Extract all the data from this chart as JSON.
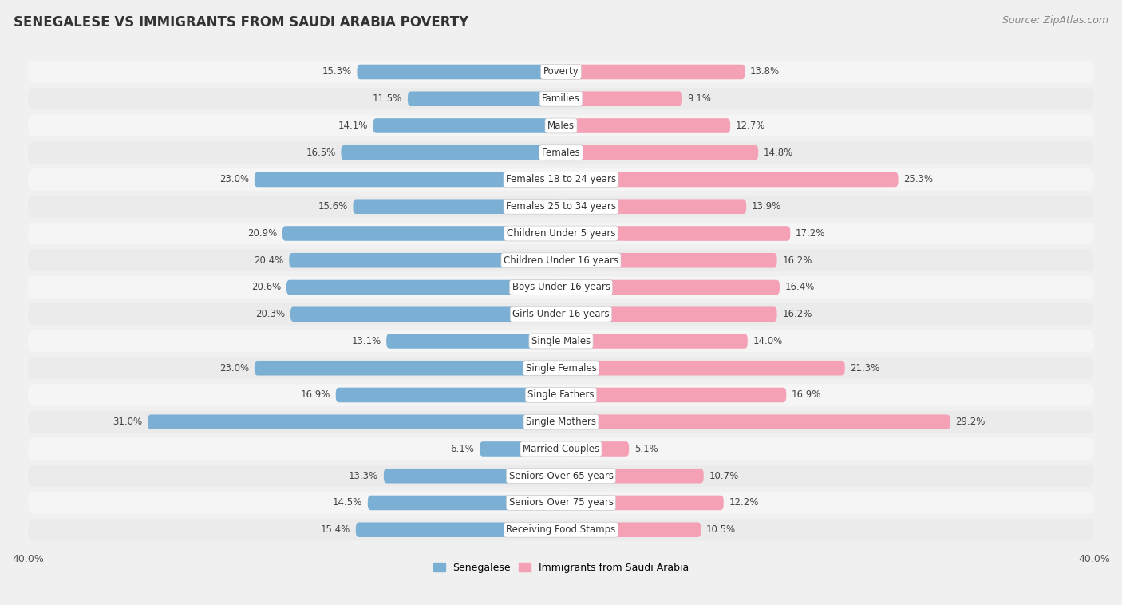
{
  "title": "SENEGALESE VS IMMIGRANTS FROM SAUDI ARABIA POVERTY",
  "source": "Source: ZipAtlas.com",
  "categories": [
    "Poverty",
    "Families",
    "Males",
    "Females",
    "Females 18 to 24 years",
    "Females 25 to 34 years",
    "Children Under 5 years",
    "Children Under 16 years",
    "Boys Under 16 years",
    "Girls Under 16 years",
    "Single Males",
    "Single Females",
    "Single Fathers",
    "Single Mothers",
    "Married Couples",
    "Seniors Over 65 years",
    "Seniors Over 75 years",
    "Receiving Food Stamps"
  ],
  "senegalese": [
    15.3,
    11.5,
    14.1,
    16.5,
    23.0,
    15.6,
    20.9,
    20.4,
    20.6,
    20.3,
    13.1,
    23.0,
    16.9,
    31.0,
    6.1,
    13.3,
    14.5,
    15.4
  ],
  "immigrants": [
    13.8,
    9.1,
    12.7,
    14.8,
    25.3,
    13.9,
    17.2,
    16.2,
    16.4,
    16.2,
    14.0,
    21.3,
    16.9,
    29.2,
    5.1,
    10.7,
    12.2,
    10.5
  ],
  "senegalese_color": "#7bafd4",
  "immigrants_color": "#f4a0b5",
  "row_bg_even": "#f5f5f5",
  "row_bg_odd": "#e8e8e8",
  "background_color": "#f0f0f0",
  "xlim": 40.0,
  "label_senegalese": "Senegalese",
  "label_immigrants": "Immigrants from Saudi Arabia",
  "title_fontsize": 12,
  "source_fontsize": 9,
  "bar_height": 0.55,
  "value_fontsize": 8.5,
  "cat_fontsize": 8.5
}
